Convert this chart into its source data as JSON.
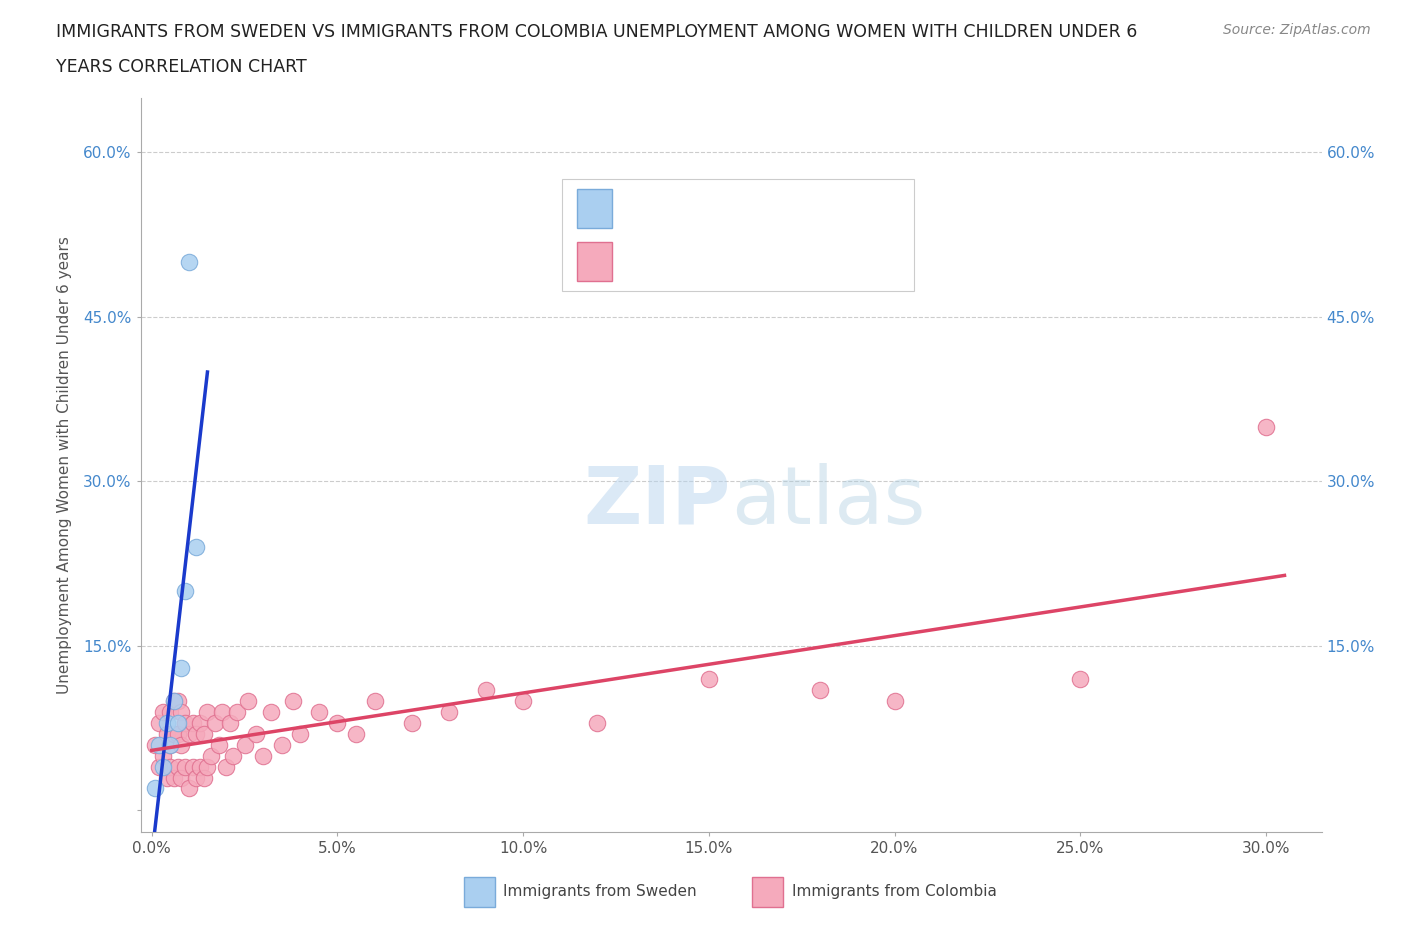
{
  "title_line1": "IMMIGRANTS FROM SWEDEN VS IMMIGRANTS FROM COLOMBIA UNEMPLOYMENT AMONG WOMEN WITH CHILDREN UNDER 6",
  "title_line2": "YEARS CORRELATION CHART",
  "source": "Source: ZipAtlas.com",
  "ylabel": "Unemployment Among Women with Children Under 6 years",
  "xlim": [
    -0.003,
    0.315
  ],
  "ylim": [
    -0.02,
    0.65
  ],
  "xticks": [
    0.0,
    0.05,
    0.1,
    0.15,
    0.2,
    0.25,
    0.3
  ],
  "xtick_labels": [
    "0.0%",
    "5.0%",
    "10.0%",
    "15.0%",
    "20.0%",
    "25.0%",
    "30.0%"
  ],
  "yticks": [
    0.0,
    0.15,
    0.3,
    0.45,
    0.6
  ],
  "ytick_labels": [
    "",
    "15.0%",
    "30.0%",
    "45.0%",
    "60.0%"
  ],
  "sweden_color": "#aacff0",
  "colombia_color": "#f5aabc",
  "sweden_edge": "#7aabda",
  "colombia_edge": "#e07090",
  "sweden_line_color": "#1a3acc",
  "colombia_line_color": "#dd4466",
  "watermark_zip": "ZIP",
  "watermark_atlas": "atlas",
  "sweden_x": [
    0.001,
    0.002,
    0.003,
    0.004,
    0.005,
    0.006,
    0.007,
    0.008,
    0.009,
    0.012,
    0.01
  ],
  "sweden_y": [
    0.02,
    0.06,
    0.04,
    0.08,
    0.06,
    0.1,
    0.08,
    0.13,
    0.2,
    0.24,
    0.5
  ],
  "colombia_x": [
    0.001,
    0.002,
    0.002,
    0.003,
    0.003,
    0.004,
    0.004,
    0.005,
    0.005,
    0.005,
    0.006,
    0.006,
    0.006,
    0.007,
    0.007,
    0.007,
    0.008,
    0.008,
    0.008,
    0.009,
    0.009,
    0.01,
    0.01,
    0.011,
    0.011,
    0.012,
    0.012,
    0.013,
    0.013,
    0.014,
    0.014,
    0.015,
    0.015,
    0.016,
    0.017,
    0.018,
    0.019,
    0.02,
    0.021,
    0.022,
    0.023,
    0.025,
    0.026,
    0.028,
    0.03,
    0.032,
    0.035,
    0.038,
    0.04,
    0.045,
    0.05,
    0.055,
    0.06,
    0.07,
    0.08,
    0.09,
    0.1,
    0.12,
    0.15,
    0.18,
    0.2,
    0.25,
    0.3
  ],
  "colombia_y": [
    0.06,
    0.04,
    0.08,
    0.05,
    0.09,
    0.03,
    0.07,
    0.04,
    0.06,
    0.09,
    0.03,
    0.07,
    0.1,
    0.04,
    0.07,
    0.1,
    0.03,
    0.06,
    0.09,
    0.04,
    0.08,
    0.02,
    0.07,
    0.04,
    0.08,
    0.03,
    0.07,
    0.04,
    0.08,
    0.03,
    0.07,
    0.04,
    0.09,
    0.05,
    0.08,
    0.06,
    0.09,
    0.04,
    0.08,
    0.05,
    0.09,
    0.06,
    0.1,
    0.07,
    0.05,
    0.09,
    0.06,
    0.1,
    0.07,
    0.09,
    0.08,
    0.07,
    0.1,
    0.08,
    0.09,
    0.11,
    0.1,
    0.08,
    0.12,
    0.11,
    0.1,
    0.12,
    0.35
  ]
}
